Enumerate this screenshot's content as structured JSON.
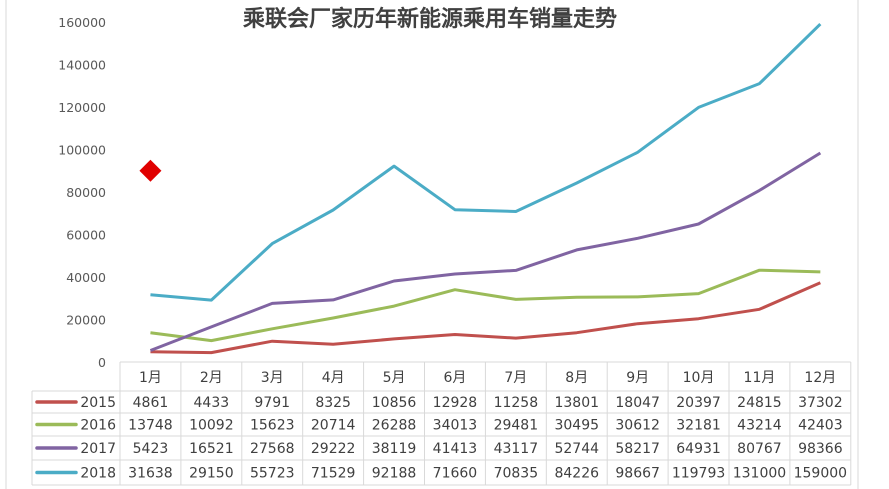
{
  "chart_data": {
    "type": "line",
    "title": "乘联会厂家历年新能源乘用车销量走势",
    "categories": [
      "1月",
      "2月",
      "3月",
      "4月",
      "5月",
      "6月",
      "7月",
      "8月",
      "9月",
      "10月",
      "11月",
      "12月"
    ],
    "ylim": [
      0,
      160000
    ],
    "yticks": [
      0,
      20000,
      40000,
      60000,
      80000,
      100000,
      120000,
      140000,
      160000
    ],
    "grid": false,
    "legend": "data-table-left",
    "series": [
      {
        "name": "2015",
        "color": "#c0504d",
        "values": [
          4861,
          4433,
          9791,
          8325,
          10856,
          12928,
          11258,
          13801,
          18047,
          20397,
          24815,
          37302
        ]
      },
      {
        "name": "2016",
        "color": "#9bbb59",
        "values": [
          13748,
          10092,
          15623,
          20714,
          26288,
          34013,
          29481,
          30495,
          30612,
          32181,
          43214,
          42403
        ]
      },
      {
        "name": "2017",
        "color": "#8064a2",
        "values": [
          5423,
          16521,
          27568,
          29222,
          38119,
          41413,
          43117,
          52744,
          58217,
          64931,
          80767,
          98366
        ]
      },
      {
        "name": "2018",
        "color": "#4bacc6",
        "values": [
          31638,
          29150,
          55723,
          71529,
          92188,
          71660,
          70835,
          84226,
          98667,
          119793,
          131000,
          159000
        ]
      }
    ],
    "marker": {
      "shape": "diamond",
      "color": "#e00000",
      "category": "1月",
      "value": 90000
    }
  }
}
